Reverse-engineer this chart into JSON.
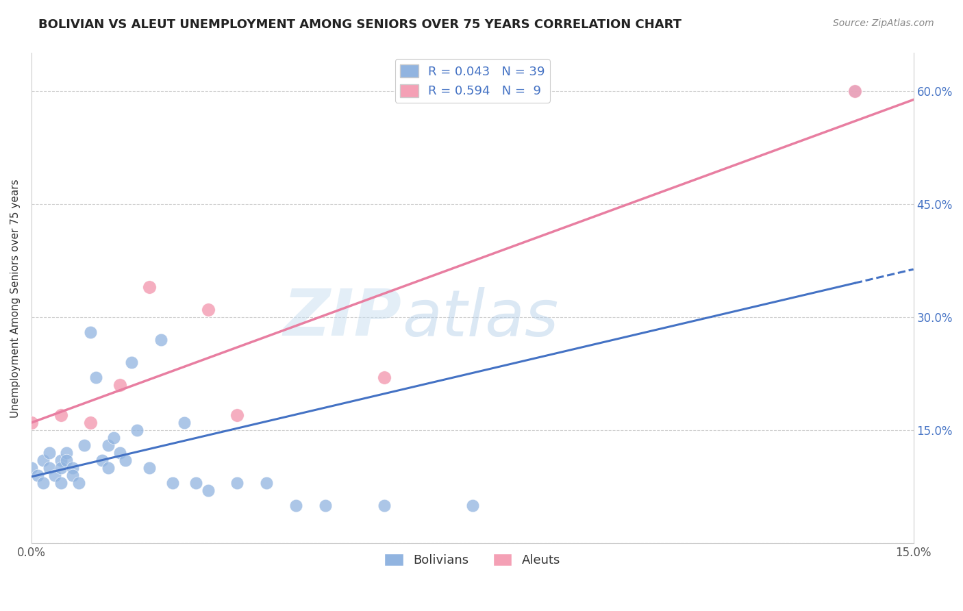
{
  "title": "BOLIVIAN VS ALEUT UNEMPLOYMENT AMONG SENIORS OVER 75 YEARS CORRELATION CHART",
  "source": "Source: ZipAtlas.com",
  "ylabel_label": "Unemployment Among Seniors over 75 years",
  "xlim": [
    0.0,
    0.15
  ],
  "ylim": [
    0.0,
    0.65
  ],
  "bolivian_R": 0.043,
  "bolivian_N": 39,
  "aleut_R": 0.594,
  "aleut_N": 9,
  "bolivian_color": "#91b4e0",
  "aleut_color": "#f4a0b5",
  "bolivian_line_color": "#4472c4",
  "aleut_line_color": "#e87ea1",
  "bolivian_x": [
    0.0,
    0.001,
    0.002,
    0.002,
    0.003,
    0.003,
    0.004,
    0.005,
    0.005,
    0.005,
    0.006,
    0.006,
    0.007,
    0.007,
    0.008,
    0.009,
    0.01,
    0.011,
    0.012,
    0.013,
    0.013,
    0.014,
    0.015,
    0.016,
    0.017,
    0.018,
    0.02,
    0.022,
    0.024,
    0.026,
    0.028,
    0.03,
    0.035,
    0.04,
    0.045,
    0.05,
    0.06,
    0.075,
    0.14
  ],
  "bolivian_y": [
    0.1,
    0.09,
    0.08,
    0.11,
    0.1,
    0.12,
    0.09,
    0.11,
    0.1,
    0.08,
    0.12,
    0.11,
    0.1,
    0.09,
    0.08,
    0.13,
    0.28,
    0.22,
    0.11,
    0.1,
    0.13,
    0.14,
    0.12,
    0.11,
    0.24,
    0.15,
    0.1,
    0.27,
    0.08,
    0.16,
    0.08,
    0.07,
    0.08,
    0.08,
    0.05,
    0.05,
    0.05,
    0.05,
    0.6
  ],
  "aleut_x": [
    0.0,
    0.005,
    0.01,
    0.015,
    0.02,
    0.03,
    0.035,
    0.06,
    0.14
  ],
  "aleut_y": [
    0.16,
    0.17,
    0.16,
    0.21,
    0.34,
    0.31,
    0.17,
    0.22,
    0.6
  ],
  "watermark_zip": "ZIP",
  "watermark_atlas": "atlas",
  "background_color": "#ffffff",
  "grid_color": "#d0d0d0"
}
